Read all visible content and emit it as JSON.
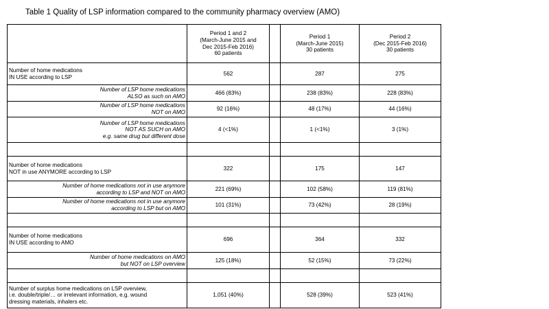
{
  "caption": "Table 1 Quality of LSP information compared to the community pharmacy overview (AMO)",
  "header": {
    "col1": [
      "Period 1 and 2",
      "(March-June 2015 and",
      "Dec 2015-Feb 2016)",
      "60 patients"
    ],
    "col2": [
      "Period 1",
      "(March-June 2015)",
      "30 patients"
    ],
    "col3": [
      "Period 2",
      "(Dec 2015-Feb 2016)",
      "30 patients"
    ]
  },
  "rows": [
    {
      "type": "main",
      "label": [
        "Number of home medications",
        "IN USE according to LSP"
      ],
      "v1": "562",
      "v2": "287",
      "v3": "275"
    },
    {
      "type": "sub",
      "label": [
        "Number of LSP home medications",
        "ALSO as such on AMO"
      ],
      "v1": "466 (83%)",
      "v2": "238 (83%)",
      "v3": "228 (83%)"
    },
    {
      "type": "sub",
      "label": [
        "Number of LSP home medications",
        "NOT on AMO"
      ],
      "v1": "92 (16%)",
      "v2": "48 (17%)",
      "v3": "44 (16%)"
    },
    {
      "type": "sub",
      "label": [
        "Number of LSP home medications",
        "NOT AS SUCH on AMO",
        "e.g. same drug but different dose"
      ],
      "v1": "4 (<1%)",
      "v2": "1 (<1%)",
      "v3": "3 (1%)"
    },
    {
      "type": "empty"
    },
    {
      "type": "main",
      "label": [
        "Number of home medications",
        "NOT in use ANYMORE according to LSP"
      ],
      "v1": "322",
      "v2": "175",
      "v3": "147"
    },
    {
      "type": "sub",
      "label": [
        "Number of home medications not in use anymore",
        "according to LSP and NOT on AMO"
      ],
      "v1": "221 (69%)",
      "v2": "102 (58%)",
      "v3": "119 (81%)"
    },
    {
      "type": "sub",
      "label": [
        "Number of home medications not in use anymore",
        "according to LSP but on AMO"
      ],
      "v1": "101 (31%)",
      "v2": "73 (42%)",
      "v3": "28 (19%)"
    },
    {
      "type": "empty"
    },
    {
      "type": "main",
      "label": [
        "Number of home medications",
        "IN USE according to AMO"
      ],
      "v1": "696",
      "v2": "364",
      "v3": "332"
    },
    {
      "type": "sub",
      "label": [
        "Number of home medications on AMO",
        "but NOT on LSP overview"
      ],
      "v1": "125 (18%)",
      "v2": "52 (15%)",
      "v3": "73 (22%)"
    },
    {
      "type": "empty"
    },
    {
      "type": "main",
      "label": [
        "Number of surplus home medications on LSP overview,",
        "i.e. double/triple/… or irrelevant information, e.g. wound",
        "dressing materials, inhalers etc."
      ],
      "v1": "1,051 (40%)",
      "v2": "528 (39%)",
      "v3": "523 (41%)"
    }
  ]
}
